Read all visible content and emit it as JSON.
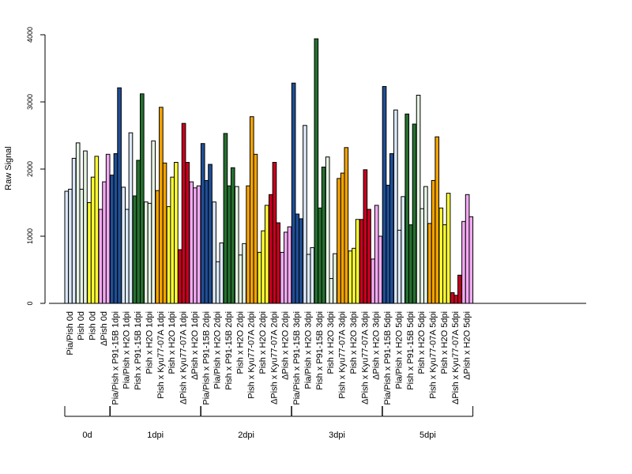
{
  "chart_data": {
    "type": "bar",
    "ylabel": "Raw Signal",
    "xlabel": "",
    "ylim": [
      0,
      4000
    ],
    "yticks": [
      0,
      1000,
      2000,
      3000,
      4000
    ],
    "groups": [
      {
        "label": "0d",
        "conditions": [
          {
            "label": "Pia/Pish 0d",
            "color": "#dbe8f8",
            "values": [
              1670,
              1700,
              2160
            ]
          },
          {
            "label": "Pish 0d",
            "color": "#e6f4e3",
            "values": [
              2390,
              1700,
              2270
            ]
          },
          {
            "label": "Pish 0d",
            "color": "#ffff33",
            "values": [
              1500,
              1880,
              2190
            ]
          },
          {
            "label": "ΔPish 0d",
            "color": "#f3a9f3",
            "values": [
              1400,
              1810,
              2220
            ]
          }
        ]
      },
      {
        "label": "1dpi",
        "conditions": [
          {
            "label": "Pia/Pish x P91-15B 1dpi",
            "color": "#1f4e96",
            "values": [
              1910,
              2230,
              3210
            ]
          },
          {
            "label": "Pia/Pish x H2O 1dpi",
            "color": "#dbe8f8",
            "values": [
              1730,
              1400,
              2540
            ]
          },
          {
            "label": "Pish x P91-15B 1dpi",
            "color": "#25702f",
            "values": [
              1600,
              2130,
              3120
            ]
          },
          {
            "label": "Pish x H2O 1dpi",
            "color": "#e6f4e3",
            "values": [
              1510,
              1490,
              2420
            ]
          },
          {
            "label": "Pish x Kyu77-07A 1dpi",
            "color": "#f5a300",
            "values": [
              1680,
              2920,
              2090
            ]
          },
          {
            "label": "Pish x H2O 1dpi",
            "color": "#ffff33",
            "values": [
              1440,
              1880,
              2100
            ]
          },
          {
            "label": "ΔPish x Kyu77-07A 1dpi",
            "color": "#c8001f",
            "values": [
              800,
              2680,
              2100
            ]
          },
          {
            "label": "ΔPish x H2O 1dpi",
            "color": "#f3a9f3",
            "values": [
              1810,
              1720,
              1750
            ]
          }
        ]
      },
      {
        "label": "2dpi",
        "conditions": [
          {
            "label": "Pia/Pish x P91-15B 2dpi",
            "color": "#1f4e96",
            "values": [
              2380,
              1830,
              2070
            ]
          },
          {
            "label": "Pia/Pish x H2O 2dpi",
            "color": "#dbe8f8",
            "values": [
              1510,
              620,
              900
            ]
          },
          {
            "label": "Pish x P91-15B 2dpi",
            "color": "#25702f",
            "values": [
              2530,
              1750,
              2020
            ]
          },
          {
            "label": "Pish x H2O 2dpi",
            "color": "#e6f4e3",
            "values": [
              1740,
              720,
              890
            ]
          },
          {
            "label": "Pish x Kyu77-07A 2dpi",
            "color": "#f5a300",
            "values": [
              1750,
              2780,
              2220
            ]
          },
          {
            "label": "Pish x H2O 2dpi",
            "color": "#ffff33",
            "values": [
              760,
              1080,
              1460
            ]
          },
          {
            "label": "ΔPish x Kyu77-07A 2dpi",
            "color": "#c8001f",
            "values": [
              1620,
              2100,
              1200
            ]
          },
          {
            "label": "ΔPish x H2O 2dpi",
            "color": "#f3a9f3",
            "values": [
              760,
              1060,
              1140
            ]
          }
        ]
      },
      {
        "label": "3dpi",
        "conditions": [
          {
            "label": "Pia/Pish x P91-15B 3dpi",
            "color": "#1f4e96",
            "values": [
              3280,
              1330,
              1260
            ]
          },
          {
            "label": "Pia/Pish x H2O 3dpi",
            "color": "#dbe8f8",
            "values": [
              2650,
              730,
              830
            ]
          },
          {
            "label": "Pish x P91-15B 3dpi",
            "color": "#25702f",
            "values": [
              3940,
              1420,
              2030
            ]
          },
          {
            "label": "Pish x H2O 3dpi",
            "color": "#e6f4e3",
            "values": [
              2180,
              370,
              740
            ]
          },
          {
            "label": "Pish x Kyu77-07A 3dpi",
            "color": "#f5a300",
            "values": [
              1860,
              1940,
              2320
            ]
          },
          {
            "label": "Pish x H2O 3dpi",
            "color": "#ffff33",
            "values": [
              780,
              820,
              1250
            ]
          },
          {
            "label": "ΔPish x Kyu77-07A 3dpi",
            "color": "#c8001f",
            "values": [
              1250,
              1990,
              1400
            ]
          },
          {
            "label": "ΔPish x H2O 3dpi",
            "color": "#f3a9f3",
            "values": [
              660,
              1460,
              1000
            ]
          }
        ]
      },
      {
        "label": "5dpi",
        "conditions": [
          {
            "label": "Pia/Pish x P91-15B 5dpi",
            "color": "#1f4e96",
            "values": [
              3230,
              1760,
              2230
            ]
          },
          {
            "label": "Pia/Pish x H2O 5dpi",
            "color": "#dbe8f8",
            "values": [
              2880,
              1090,
              1590
            ]
          },
          {
            "label": "Pish x P91-15B 5dpi",
            "color": "#25702f",
            "values": [
              2820,
              1170,
              2670
            ]
          },
          {
            "label": "Pish x H2O 5dpi",
            "color": "#e6f4e3",
            "values": [
              3100,
              1410,
              1740
            ]
          },
          {
            "label": "Pish x Kyu77-07A 5dpi",
            "color": "#f5a300",
            "values": [
              1190,
              1830,
              2480
            ]
          },
          {
            "label": "Pish x H2O 5dpi",
            "color": "#ffff33",
            "values": [
              1420,
              1170,
              1640
            ]
          },
          {
            "label": "ΔPish x Kyu77-07A 5dpi",
            "color": "#c8001f",
            "values": [
              160,
              120,
              420
            ]
          },
          {
            "label": "ΔPish x H2O 5dpi",
            "color": "#f3a9f3",
            "values": [
              1220,
              1620,
              1290
            ]
          }
        ]
      }
    ]
  }
}
